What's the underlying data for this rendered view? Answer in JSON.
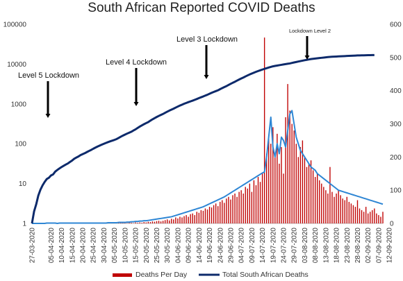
{
  "chart_data": {
    "type": "bar+line",
    "title": "South African Reported COVID Deaths",
    "log_axis": {
      "side": "left",
      "scale": "log",
      "range": [
        1,
        100000
      ],
      "ticks": [
        "1",
        "10",
        "100",
        "1000",
        "10000",
        "100000"
      ]
    },
    "linear_axis": {
      "side": "right",
      "scale": "linear",
      "range": [
        0,
        600
      ],
      "ticks": [
        "0",
        "100",
        "200",
        "300",
        "400",
        "500",
        "600"
      ]
    },
    "grid": false,
    "legend_position": "bottom",
    "start_date": "27-03-2020",
    "end_date": "16-09-2020",
    "x_tick_labels": [
      "27-03-2020",
      "05-04-2020",
      "10-04-2020",
      "15-04-2020",
      "20-04-2020",
      "25-04-2020",
      "30-04-2020",
      "05-05-2020",
      "10-05-2020",
      "15-05-2020",
      "20-05-2020",
      "25-05-2020",
      "30-05-2020",
      "04-06-2020",
      "09-06-2020",
      "14-06-2020",
      "19-06-2020",
      "24-06-2020",
      "29-06-2020",
      "04-07-2020",
      "09-07-2020",
      "14-07-2020",
      "19-07-2020",
      "24-07-2020",
      "29-07-2020",
      "03-08-2020",
      "08-08-2020",
      "13-08-2020",
      "18-08-2020",
      "23-08-2020",
      "28-08-2020",
      "02-09-2020",
      "07-09-2020",
      "12-09-2020"
    ],
    "series": [
      {
        "name": "Deaths Per Day",
        "type": "bar",
        "axis": "right",
        "color": "#c00000",
        "values": [
          0,
          0,
          0,
          0,
          0,
          0,
          0,
          0,
          1,
          0,
          1,
          0,
          0,
          1,
          0,
          1,
          0,
          1,
          1,
          1,
          0,
          1,
          0,
          1,
          1,
          0,
          1,
          1,
          1,
          1,
          0,
          1,
          1,
          0,
          1,
          1,
          2,
          0,
          1,
          2,
          1,
          1,
          2,
          1,
          2,
          1,
          2,
          2,
          1,
          3,
          2,
          3,
          2,
          4,
          3,
          5,
          4,
          6,
          5,
          7,
          8,
          6,
          8,
          10,
          12,
          9,
          14,
          12,
          18,
          15,
          20,
          18,
          22,
          25,
          20,
          28,
          30,
          25,
          35,
          32,
          40,
          38,
          45,
          42,
          50,
          48,
          55,
          60,
          52,
          65,
          70,
          62,
          75,
          80,
          72,
          85,
          90,
          80,
          95,
          100,
          90,
          110,
          105,
          120,
          95,
          130,
          115,
          140,
          125,
          150,
          560,
          210,
          260,
          240,
          290,
          200,
          270,
          180,
          230,
          150,
          320,
          420,
          340,
          300,
          280,
          240,
          200,
          230,
          250,
          200,
          170,
          180,
          190,
          160,
          140,
          150,
          130,
          120,
          110,
          100,
          90,
          170,
          95,
          80,
          90,
          100,
          85,
          75,
          70,
          80,
          65,
          60,
          55,
          50,
          70,
          45,
          40,
          35,
          50,
          30,
          35,
          40,
          45,
          30,
          25,
          20,
          35
        ]
      },
      {
        "name": "Total South African Deaths",
        "type": "line",
        "axis": "left",
        "color": "#0d2a6b",
        "values": [
          1,
          2,
          3,
          5,
          7,
          9,
          11,
          13,
          14,
          16,
          17,
          20,
          22,
          24,
          26,
          28,
          30,
          32,
          35,
          38,
          42,
          45,
          48,
          52,
          55,
          58,
          62,
          66,
          70,
          75,
          80,
          85,
          90,
          95,
          100,
          105,
          110,
          115,
          120,
          125,
          131,
          140,
          150,
          160,
          170,
          180,
          190,
          200,
          215,
          230,
          250,
          270,
          290,
          310,
          330,
          350,
          380,
          410,
          440,
          470,
          500,
          530,
          560,
          600,
          640,
          680,
          720,
          760,
          810,
          860,
          910,
          960,
          1010,
          1060,
          1110,
          1160,
          1210,
          1270,
          1330,
          1400,
          1470,
          1540,
          1620,
          1700,
          1800,
          1900,
          2000,
          2100,
          2200,
          2350,
          2500,
          2650,
          2800,
          3000,
          3200,
          3400,
          3600,
          3850,
          4100,
          4350,
          4600,
          4900,
          5200,
          5500,
          5800,
          6100,
          6400,
          6700,
          7000,
          7300,
          7600,
          7900,
          8200,
          8500,
          8800,
          9000,
          9200,
          9400,
          9600,
          9800,
          10000,
          10200,
          10400,
          10700,
          11000,
          11300,
          11600,
          11900,
          12200,
          12500,
          12800,
          13100,
          13400,
          13600,
          13800,
          14000,
          14200,
          14400,
          14600,
          14800,
          15000,
          15200,
          15300,
          15400,
          15500,
          15600,
          15700,
          15800,
          15900,
          16000,
          16100,
          16200,
          16300,
          16400,
          16500,
          16550,
          16600,
          16650,
          16700,
          16750,
          16800,
          16850,
          16880
        ]
      },
      {
        "name": "",
        "type": "line",
        "axis": "right",
        "color": "#2e86d4",
        "values": [
          0,
          0,
          0,
          0,
          0,
          0,
          0,
          1,
          1,
          1,
          1,
          1,
          0,
          1,
          1,
          1,
          1,
          1,
          1,
          1,
          1,
          1,
          1,
          1,
          1,
          1,
          1,
          1,
          1,
          1,
          1,
          1,
          1,
          1,
          1,
          1,
          2,
          2,
          2,
          2,
          2,
          3,
          3,
          3,
          3,
          4,
          4,
          5,
          5,
          6,
          6,
          7,
          7,
          8,
          8,
          9,
          10,
          11,
          12,
          13,
          14,
          15,
          16,
          17,
          18,
          19,
          20,
          22,
          24,
          26,
          28,
          30,
          32,
          34,
          36,
          38,
          40,
          42,
          44,
          46,
          48,
          50,
          53,
          56,
          59,
          62,
          65,
          68,
          71,
          74,
          77,
          80,
          84,
          88,
          92,
          96,
          100,
          104,
          108,
          112,
          116,
          120,
          124,
          128,
          132,
          136,
          140,
          144,
          148,
          152,
          155,
          200,
          260,
          320,
          230,
          200,
          240,
          210,
          260,
          250,
          230,
          280,
          330,
          340,
          300,
          260,
          240,
          220,
          210,
          200,
          190,
          180,
          170,
          165,
          160,
          150,
          145,
          140,
          135,
          130,
          125,
          120,
          115,
          110,
          105,
          100,
          98,
          96,
          94,
          92,
          90,
          88,
          86,
          84,
          82,
          80,
          78,
          76,
          74,
          72,
          70,
          68,
          66,
          64,
          62,
          60,
          58
        ]
      }
    ],
    "annotations": [
      "Level 5 Lockdown",
      "Level 4 Lockdown",
      "Level 3 Lockdown",
      "Lockdown Level 2"
    ]
  }
}
